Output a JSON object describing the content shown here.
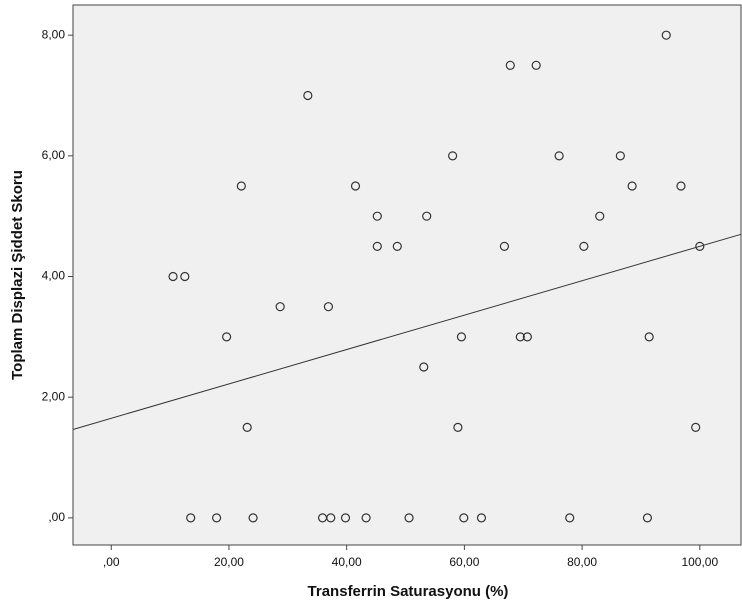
{
  "chart_data": {
    "type": "scatter",
    "x_label": "Transferrin Saturasyonu (%)",
    "y_label": "Toplam Displazi Şiddet Skoru",
    "x": [
      10.5,
      12.5,
      13.5,
      17.9,
      19.6,
      22.1,
      23.1,
      24.1,
      28.7,
      33.4,
      35.9,
      37.3,
      36.9,
      39.8,
      41.5,
      43.3,
      45.2,
      45.2,
      48.6,
      50.6,
      53.1,
      53.6,
      58.0,
      58.9,
      59.5,
      59.9,
      62.9,
      66.8,
      67.8,
      69.5,
      70.7,
      72.2,
      76.1,
      77.9,
      80.3,
      83.0,
      86.5,
      88.5,
      91.1,
      91.4,
      94.3,
      96.8,
      99.3,
      100.0
    ],
    "values": [
      4,
      4,
      0,
      0,
      3,
      5.5,
      1.5,
      0,
      3.5,
      7,
      0,
      0,
      3.5,
      0,
      5.5,
      0,
      5,
      4.5,
      4.5,
      0,
      2.5,
      5,
      6,
      1.5,
      3,
      0,
      0,
      4.5,
      7.5,
      3,
      3,
      7.5,
      6,
      0,
      4.5,
      5,
      6,
      5.5,
      0,
      3,
      8,
      5.5,
      1.5,
      4.5
    ],
    "fit_line": {
      "intercept": 1.65,
      "slope": 0.0285
    },
    "xlim": [
      -6.5,
      107
    ],
    "ylim": [
      -0.45,
      8.5
    ],
    "xticks": [
      {
        "value": 0,
        "label": ",00"
      },
      {
        "value": 20,
        "label": "20,00"
      },
      {
        "value": 40,
        "label": "40,00"
      },
      {
        "value": 60,
        "label": "60,00"
      },
      {
        "value": 80,
        "label": "80,00"
      },
      {
        "value": 100,
        "label": "100,00"
      }
    ],
    "yticks": [
      {
        "value": 0,
        "label": ",00"
      },
      {
        "value": 2,
        "label": "2,00"
      },
      {
        "value": 4,
        "label": "4,00"
      },
      {
        "value": 6,
        "label": "6,00"
      },
      {
        "value": 8,
        "label": "8,00"
      }
    ],
    "plot_background": "#f0f0f0",
    "marker_color": "#333333",
    "line_color": "#333333"
  }
}
